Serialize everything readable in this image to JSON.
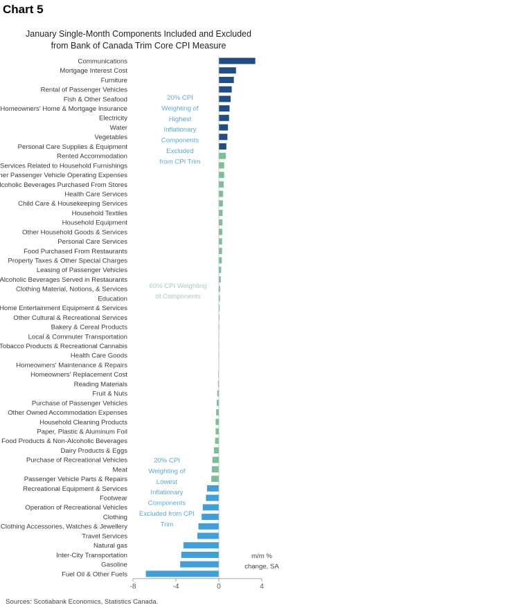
{
  "header": {
    "label": "Chart 5"
  },
  "chart_data": {
    "type": "bar",
    "orientation": "horizontal",
    "title_lines": [
      "January Single-Month Components Included and Excluded",
      "from Bank of Canada Trim Core CPI Measure"
    ],
    "categories": [
      "Communications",
      "Mortgage Interest Cost",
      "Furniture",
      "Rental of Passenger Vehicles",
      "Fish & Other Seafood",
      "Homeowners' Home & Mortgage Insurance",
      "Electricity",
      "Water",
      "Vegetables",
      "Personal Care Supplies & Equipment",
      "Rented Accommodation",
      "Services Related to Household Furnishings",
      "Other Passenger Vehicle Operating Expenses",
      "Alcoholic Beverages Purchased From Stores",
      "Health Care Services",
      "Child Care & Housekeeping Services",
      "Household Textiles",
      "Household Equipment",
      "Other Household Goods & Services",
      "Personal Care Services",
      "Food Purchased From Restaurants",
      "Property Taxes & Other Special Charges",
      "Leasing of Passenger Vehicles",
      "Alcoholic Beverages Served in Restaurants",
      "Clothing Material, Notions, & Services",
      "Education",
      "Home Entertainment Equipment & Services",
      "Other Cultural & Recreational Services",
      "Bakery & Cereal Products",
      "Local & Commuter Transportation",
      "Tobacco Products & Recreational Cannabis",
      "Health Care Goods",
      "Homeowners' Maintenance & Repairs",
      "Homeowners' Replacement Cost",
      "Reading Materials",
      "Fruit & Nuts",
      "Purchase of Passenger Vehicles",
      "Other Owned Accommodation Expenses",
      "Household Cleaning Products",
      "Paper, Plastic & Aluminum Foil",
      "Other Food Products & Non-Alcoholic Beverages",
      "Dairy Products & Eggs",
      "Purchase of Recreational Vehicles",
      "Meat",
      "Passenger Vehicle Parts & Repairs",
      "Recreational Equipment & Services",
      "Footwear",
      "Operation of Recreational Vehicles",
      "Clothing",
      "Clothing Accessories, Watches & Jewellery",
      "Travel Services",
      "Natural gas",
      "Inter-City Transportation",
      "Gasoline",
      "Fuel Oil & Other Fuels"
    ],
    "values": [
      3.4,
      1.6,
      1.4,
      1.2,
      1.1,
      1.0,
      0.95,
      0.85,
      0.8,
      0.7,
      0.65,
      0.5,
      0.5,
      0.45,
      0.4,
      0.38,
      0.35,
      0.33,
      0.32,
      0.3,
      0.3,
      0.28,
      0.22,
      0.18,
      0.12,
      0.1,
      0.08,
      0.06,
      0.05,
      0.04,
      0.03,
      0.02,
      -0.02,
      -0.05,
      -0.08,
      -0.15,
      -0.2,
      -0.25,
      -0.3,
      -0.3,
      -0.35,
      -0.45,
      -0.6,
      -0.65,
      -0.7,
      -1.1,
      -1.2,
      -1.5,
      -1.6,
      -1.9,
      -2.0,
      -3.3,
      -3.5,
      -3.6,
      -6.8
    ],
    "groups": [
      {
        "name": "excluded-high",
        "from": 0,
        "to": 9,
        "color": "#1f4e87"
      },
      {
        "name": "included-middle",
        "from": 10,
        "to": 44,
        "color": "#7bbf9a"
      },
      {
        "name": "excluded-low",
        "from": 45,
        "to": 54,
        "color": "#3f9fd6"
      }
    ],
    "xlim": [
      -8,
      4
    ],
    "xticks": [
      -8,
      -4,
      0,
      4
    ],
    "grid": false,
    "annotations": {
      "top_lines": [
        "20% CPI",
        "Weighting of",
        "Highest",
        "Inflationary",
        "Components",
        "Excluded",
        "from CPI Trim"
      ],
      "middle_lines": [
        "60% CPI Weighting",
        "of Components"
      ],
      "bottom_lines": [
        "20% CPI",
        "Weighting of",
        "Lowest",
        "Inflationary",
        "Components",
        "Excluded from CPI",
        "Trim"
      ],
      "top_color": "#5aa8d8",
      "middle_color": "#a9cfb7",
      "bottom_color": "#5aa8d8"
    },
    "unit_lines": [
      "m/m %",
      "change, SA"
    ],
    "source": "Sources: Scotiabank Economics, Statistics Canada."
  }
}
